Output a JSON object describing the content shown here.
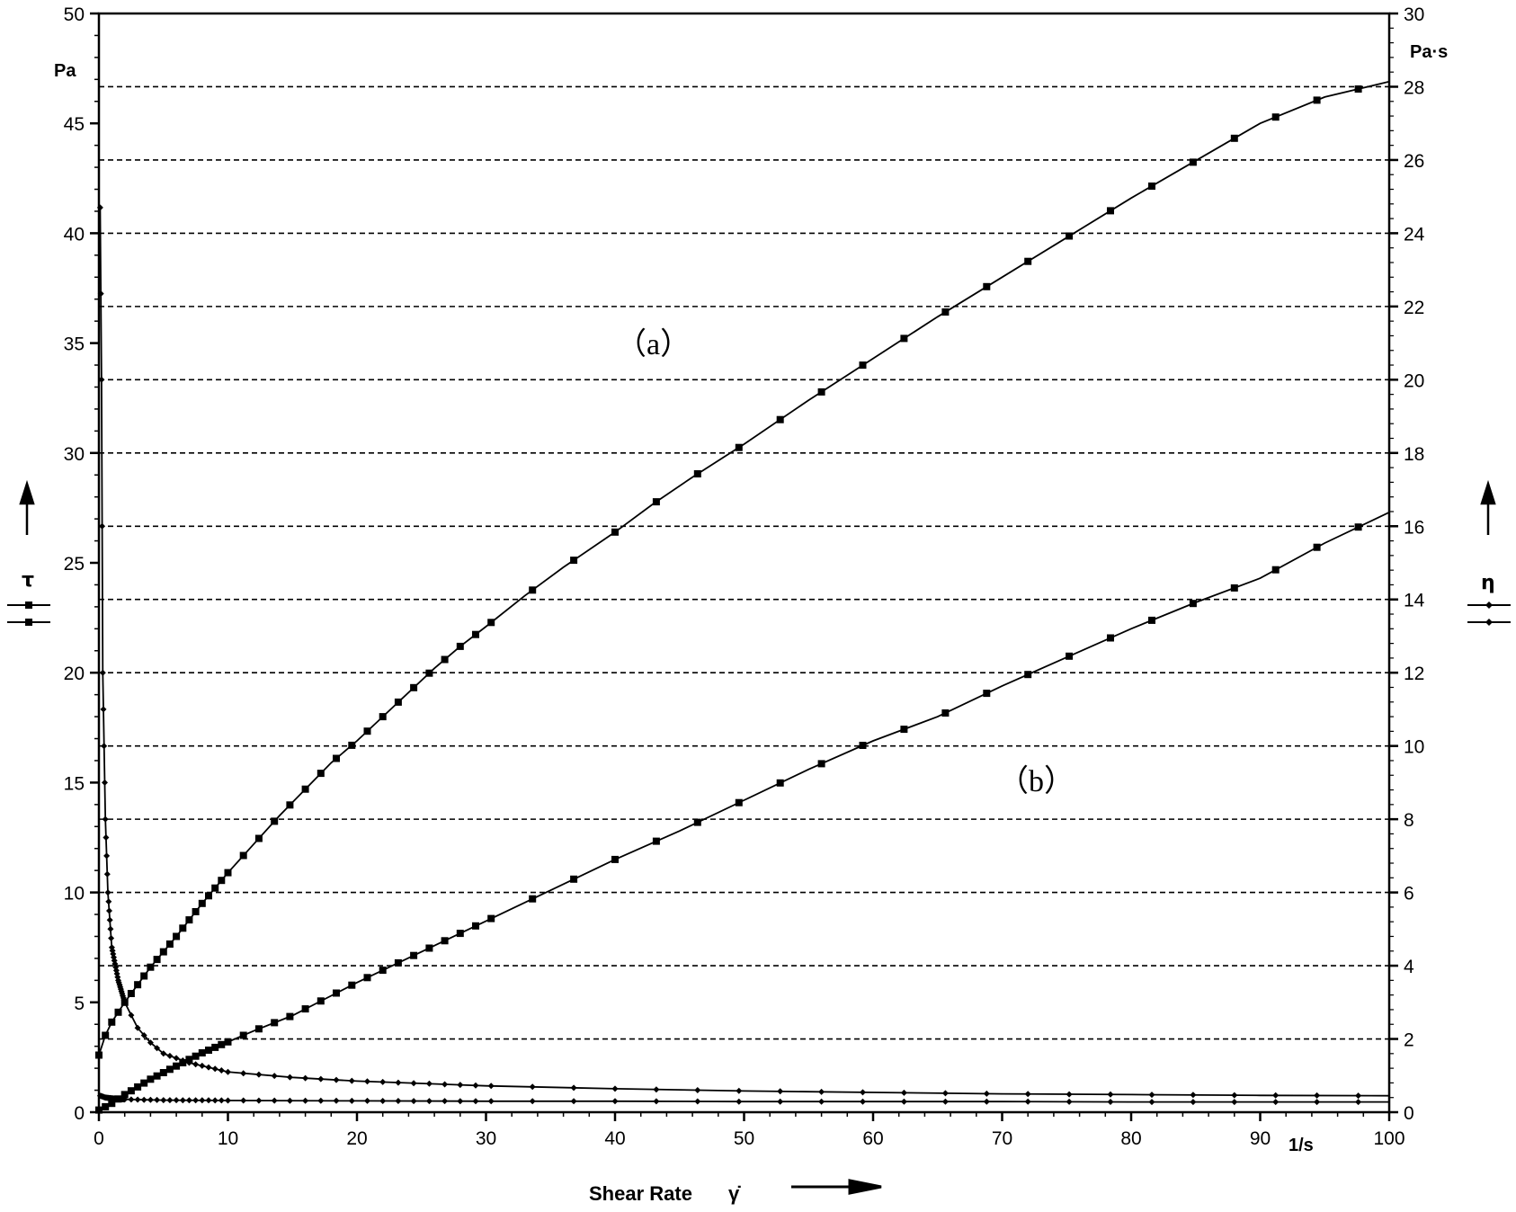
{
  "chart_data": {
    "type": "line",
    "title": "",
    "xlabel": "Shear Rate",
    "xlabel_symbol": "γ̇",
    "x_unit": "1/s",
    "xlim": [
      0,
      100
    ],
    "x_ticks": [
      0,
      10,
      20,
      30,
      40,
      50,
      60,
      70,
      80,
      90,
      100
    ],
    "x_tick_labels": [
      "0",
      "10",
      "20",
      "30",
      "40",
      "50",
      "60",
      "70",
      "80",
      "90",
      "100"
    ],
    "y_left": {
      "symbol": "τ",
      "unit": "Pa",
      "lim": [
        0,
        50
      ],
      "ticks": [
        0,
        5,
        10,
        15,
        20,
        25,
        30,
        35,
        40,
        45,
        50
      ],
      "tick_labels": [
        "0",
        "5",
        "10",
        "15",
        "20",
        "25",
        "30",
        "35",
        "40",
        "45",
        "50"
      ]
    },
    "y_right": {
      "symbol": "η",
      "unit": "Pa·s",
      "lim": [
        0,
        30
      ],
      "ticks": [
        0,
        2,
        4,
        6,
        8,
        10,
        12,
        14,
        16,
        18,
        20,
        22,
        24,
        26,
        28,
        30
      ],
      "tick_labels": [
        "0",
        "2",
        "4",
        "6",
        "8",
        "10",
        "12",
        "14",
        "16",
        "18",
        "20",
        "22",
        "24",
        "26",
        "28",
        "30"
      ]
    },
    "grid": "horizontal dashed at right-axis even ticks",
    "annotations": [
      "（a）",
      "（b）"
    ],
    "series": [
      {
        "label": "a",
        "quantity": "τ",
        "axis": "left",
        "marker": "square",
        "x": [
          0,
          0.5,
          1,
          2,
          3,
          4,
          5,
          6,
          8,
          10,
          12,
          14,
          16,
          18,
          20,
          22,
          24,
          26,
          28,
          30,
          33,
          36,
          40,
          43,
          46,
          50,
          55,
          60,
          65,
          70,
          75,
          80,
          85,
          90,
          95,
          100
        ],
        "y": [
          2.6,
          3.5,
          4.1,
          5.0,
          5.8,
          6.6,
          7.3,
          8.0,
          9.5,
          10.9,
          12.2,
          13.5,
          14.7,
          15.9,
          16.9,
          18.0,
          19.1,
          20.2,
          21.2,
          22.1,
          23.5,
          24.8,
          26.4,
          27.7,
          28.9,
          30.4,
          32.4,
          34.3,
          36.2,
          38.0,
          39.8,
          41.6,
          43.3,
          45.0,
          46.2,
          46.9
        ]
      },
      {
        "label": "b",
        "quantity": "τ",
        "axis": "left",
        "marker": "square",
        "x": [
          0,
          1,
          2,
          4,
          6,
          8,
          10,
          12,
          15,
          18,
          20,
          25,
          30,
          35,
          40,
          45,
          50,
          55,
          60,
          65,
          70,
          75,
          80,
          85,
          90,
          95,
          100
        ],
        "y": [
          0.1,
          0.4,
          0.8,
          1.5,
          2.1,
          2.7,
          3.2,
          3.7,
          4.4,
          5.3,
          5.9,
          7.3,
          8.7,
          10.1,
          11.5,
          12.8,
          14.2,
          15.6,
          16.9,
          18.0,
          19.4,
          20.7,
          22.0,
          23.2,
          24.3,
          25.9,
          27.3
        ]
      },
      {
        "label": "a",
        "quantity": "η",
        "axis": "right",
        "marker": "diamond",
        "x": [
          0.1,
          0.2,
          0.3,
          0.5,
          0.7,
          1,
          1.5,
          2,
          3,
          4,
          5,
          7,
          10,
          15,
          20,
          30,
          40,
          50,
          60,
          70,
          80,
          90,
          100
        ],
        "y": [
          24.7,
          20.0,
          12.0,
          8.0,
          6.0,
          4.5,
          3.6,
          3.0,
          2.3,
          1.9,
          1.6,
          1.35,
          1.1,
          0.95,
          0.85,
          0.72,
          0.64,
          0.58,
          0.54,
          0.5,
          0.48,
          0.46,
          0.45
        ]
      },
      {
        "label": "b",
        "quantity": "η",
        "axis": "right",
        "marker": "diamond",
        "x": [
          0.1,
          0.5,
          1,
          2,
          5,
          10,
          20,
          30,
          40,
          50,
          60,
          70,
          80,
          90,
          100
        ],
        "y": [
          0.45,
          0.4,
          0.38,
          0.35,
          0.33,
          0.32,
          0.31,
          0.3,
          0.3,
          0.29,
          0.29,
          0.29,
          0.28,
          0.28,
          0.28
        ]
      }
    ]
  }
}
